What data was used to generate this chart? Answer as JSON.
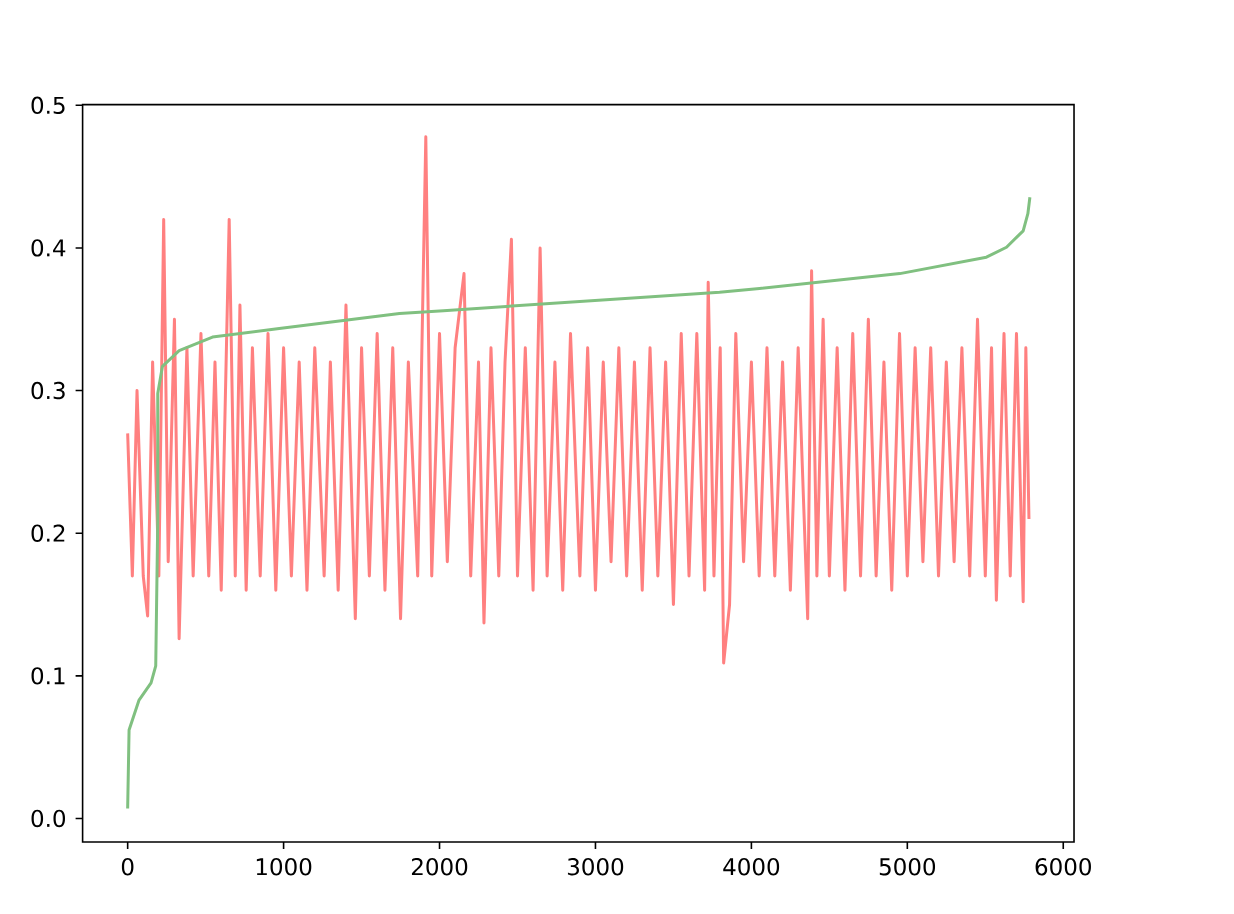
{
  "chart_data": {
    "type": "line",
    "xlim": [
      -289,
      6069
    ],
    "ylim": [
      -0.0165,
      0.5005
    ],
    "xticks": [
      0,
      1000,
      2000,
      3000,
      4000,
      5000,
      6000
    ],
    "yticks": [
      {
        "value": 0,
        "label": "0.0"
      },
      {
        "value": 0.1,
        "label": "0.1"
      },
      {
        "value": 0.2,
        "label": "0.2"
      },
      {
        "value": 0.3,
        "label": "0.3"
      },
      {
        "value": 0.4,
        "label": "0.4"
      },
      {
        "value": 0.5,
        "label": "0.5"
      }
    ],
    "series": [
      {
        "color": "#ff8080",
        "x": [
          0,
          30,
          60,
          100,
          128,
          160,
          200,
          231,
          260,
          300,
          330,
          380,
          420,
          470,
          520,
          560,
          600,
          651,
          690,
          720,
          760,
          800,
          850,
          900,
          950,
          1000,
          1050,
          1100,
          1150,
          1200,
          1260,
          1300,
          1350,
          1400,
          1460,
          1500,
          1550,
          1600,
          1650,
          1700,
          1750,
          1800,
          1860,
          1912,
          1950,
          2000,
          2050,
          2100,
          2157,
          2200,
          2250,
          2285,
          2330,
          2380,
          2420,
          2461,
          2500,
          2550,
          2600,
          2645,
          2690,
          2740,
          2790,
          2840,
          2900,
          2950,
          3000,
          3050,
          3100,
          3150,
          3200,
          3250,
          3300,
          3350,
          3400,
          3450,
          3500,
          3550,
          3600,
          3650,
          3700,
          3723,
          3760,
          3800,
          3822,
          3860,
          3900,
          3950,
          4000,
          4050,
          4100,
          4150,
          4200,
          4250,
          4300,
          4361,
          4386,
          4420,
          4460,
          4500,
          4550,
          4600,
          4650,
          4700,
          4750,
          4800,
          4850,
          4900,
          4950,
          5000,
          5050,
          5100,
          5150,
          5200,
          5250,
          5300,
          5350,
          5400,
          5450,
          5500,
          5540,
          5571,
          5620,
          5660,
          5700,
          5743,
          5760,
          5780
        ],
        "values": [
          0.27,
          0.17,
          0.3,
          0.17,
          0.142,
          0.32,
          0.17,
          0.42,
          0.18,
          0.35,
          0.126,
          0.33,
          0.17,
          0.34,
          0.17,
          0.32,
          0.16,
          0.42,
          0.17,
          0.36,
          0.16,
          0.33,
          0.17,
          0.34,
          0.16,
          0.33,
          0.17,
          0.32,
          0.16,
          0.33,
          0.17,
          0.32,
          0.16,
          0.36,
          0.14,
          0.33,
          0.17,
          0.34,
          0.16,
          0.33,
          0.14,
          0.32,
          0.17,
          0.478,
          0.17,
          0.34,
          0.18,
          0.33,
          0.382,
          0.17,
          0.32,
          0.137,
          0.33,
          0.17,
          0.32,
          0.406,
          0.17,
          0.33,
          0.16,
          0.4,
          0.17,
          0.32,
          0.16,
          0.34,
          0.17,
          0.33,
          0.16,
          0.32,
          0.18,
          0.33,
          0.17,
          0.32,
          0.16,
          0.33,
          0.17,
          0.32,
          0.15,
          0.34,
          0.17,
          0.34,
          0.16,
          0.376,
          0.17,
          0.33,
          0.109,
          0.15,
          0.34,
          0.18,
          0.32,
          0.17,
          0.33,
          0.17,
          0.32,
          0.16,
          0.33,
          0.14,
          0.384,
          0.17,
          0.35,
          0.17,
          0.33,
          0.16,
          0.34,
          0.17,
          0.35,
          0.17,
          0.32,
          0.16,
          0.34,
          0.17,
          0.33,
          0.18,
          0.33,
          0.17,
          0.32,
          0.18,
          0.33,
          0.17,
          0.35,
          0.17,
          0.33,
          0.153,
          0.34,
          0.17,
          0.34,
          0.152,
          0.33,
          0.21
        ]
      },
      {
        "color": "#80c080",
        "x": [
          0,
          9,
          73,
          150,
          180,
          193,
          193,
          223,
          330,
          544,
          972,
          1743,
          2025,
          3796,
          4052,
          4952,
          5507,
          5636,
          5743,
          5773,
          5786
        ],
        "values": [
          0.007,
          0.062,
          0.083,
          0.095,
          0.107,
          0.209,
          0.298,
          0.317,
          0.328,
          0.3375,
          0.3435,
          0.354,
          0.356,
          0.369,
          0.3716,
          0.382,
          0.3935,
          0.4005,
          0.412,
          0.424,
          0.4355
        ]
      }
    ]
  }
}
